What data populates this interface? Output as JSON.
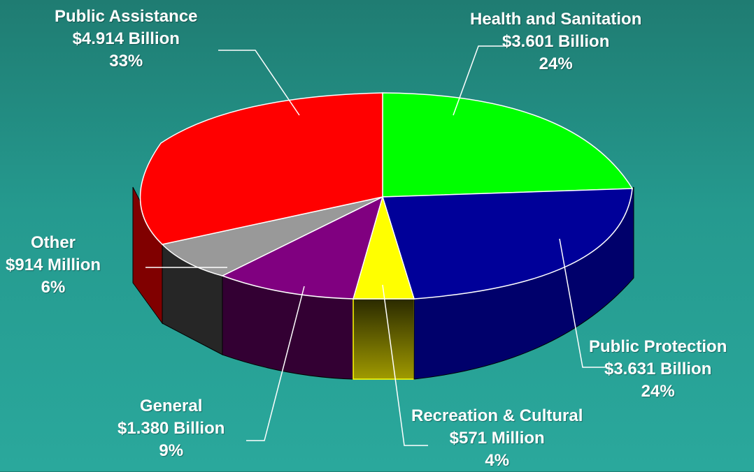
{
  "chart_data": {
    "type": "pie",
    "title": "",
    "slices": [
      {
        "name": "Health and Sanitation",
        "amount": "$3.601 Billion",
        "percent": "24%",
        "value": 3.601,
        "color": "#00ff00"
      },
      {
        "name": "Public Protection",
        "amount": "$3.631 Billion",
        "percent": "24%",
        "value": 3.631,
        "color": "#000099"
      },
      {
        "name": "Recreation & Cultural",
        "amount": "$571 Million",
        "percent": "4%",
        "value": 0.571,
        "color": "#ffff00"
      },
      {
        "name": "General",
        "amount": "$1.380 Billion",
        "percent": "9%",
        "value": 1.38,
        "color": "#800080"
      },
      {
        "name": "Other",
        "amount": "$914 Million",
        "percent": "6%",
        "value": 0.914,
        "color": "#999999"
      },
      {
        "name": "Public Assistance",
        "amount": "$4.914 Billion",
        "percent": "33%",
        "value": 4.914,
        "color": "#ff0000"
      }
    ]
  }
}
